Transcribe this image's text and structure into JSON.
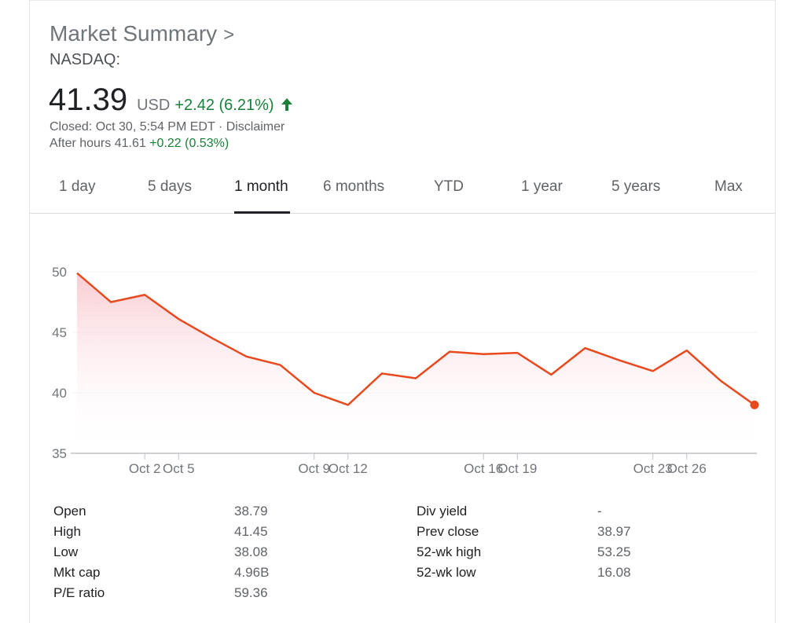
{
  "summary": {
    "title": "Market Summary",
    "title_chevron": ">",
    "exchange": "NASDAQ:",
    "price": "41.39",
    "currency": "USD",
    "change": "+2.42 (6.21%)",
    "closed_text": "Closed: Oct 30, 5:54 PM EDT",
    "separator": " · ",
    "disclaimer": "Disclaimer",
    "after_hours_label": "After hours 41.61",
    "after_hours_change": "+0.22 (0.53%)"
  },
  "tabs": [
    {
      "label": "1 day"
    },
    {
      "label": "5 days"
    },
    {
      "label": "1 month"
    },
    {
      "label": "6 months"
    },
    {
      "label": "YTD"
    },
    {
      "label": "1 year"
    },
    {
      "label": "5 years"
    },
    {
      "label": "Max"
    }
  ],
  "active_tab": 2,
  "colors": {
    "line": "#e8491d",
    "fill_top": "#f8c9d0",
    "positive": "#188038"
  },
  "icons": {
    "change_arrow": "arrow-up-icon"
  },
  "chart_data": {
    "type": "area",
    "x_tick_labels": [
      "Oct 2",
      "Oct 5",
      "Oct 9",
      "Oct 12",
      "Oct 16",
      "Oct 19",
      "Oct 23",
      "Oct 26"
    ],
    "y_ticks": [
      50,
      45,
      40,
      35
    ],
    "ylim": [
      35,
      50
    ],
    "grid": true,
    "x": [
      "Sep 30",
      "Oct 1",
      "Oct 2",
      "Oct 5",
      "Oct 6",
      "Oct 7",
      "Oct 8",
      "Oct 9",
      "Oct 12",
      "Oct 13",
      "Oct 14",
      "Oct 15",
      "Oct 16",
      "Oct 19",
      "Oct 20",
      "Oct 21",
      "Oct 22",
      "Oct 23",
      "Oct 26",
      "Oct 27",
      "Oct 28"
    ],
    "values": [
      49.9,
      47.5,
      48.1,
      46.1,
      44.5,
      43.0,
      42.3,
      40.0,
      39.0,
      41.6,
      41.2,
      43.4,
      43.2,
      43.3,
      41.5,
      43.7,
      42.7,
      41.8,
      43.5,
      41.0,
      39.0
    ]
  },
  "stats": {
    "left": [
      {
        "label": "Open",
        "value": "38.79"
      },
      {
        "label": "High",
        "value": "41.45"
      },
      {
        "label": "Low",
        "value": "38.08"
      },
      {
        "label": "Mkt cap",
        "value": "4.96B"
      },
      {
        "label": "P/E ratio",
        "value": "59.36"
      }
    ],
    "right": [
      {
        "label": "Div yield",
        "value": "-"
      },
      {
        "label": "Prev close",
        "value": "38.97"
      },
      {
        "label": "52-wk high",
        "value": "53.25"
      },
      {
        "label": "52-wk low",
        "value": "16.08"
      }
    ]
  }
}
